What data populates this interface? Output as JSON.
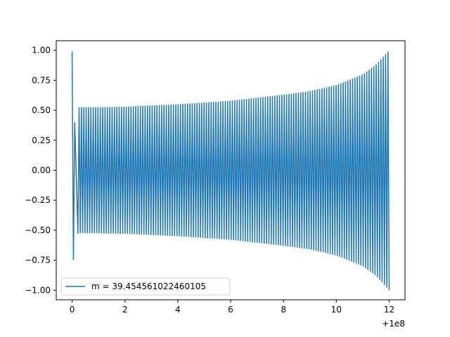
{
  "chart_data": {
    "type": "line",
    "title": "",
    "xlabel": "",
    "ylabel": "",
    "x_offset_label": "+1e8",
    "xlim": [
      -0.6,
      12.6
    ],
    "ylim": [
      -1.08,
      1.08
    ],
    "x_ticks": [
      0,
      2,
      4,
      6,
      8,
      10,
      12
    ],
    "x_tick_labels": [
      "0",
      "2",
      "4",
      "6",
      "8",
      "10",
      "12"
    ],
    "y_ticks": [
      1.0,
      0.75,
      0.5,
      0.25,
      0.0,
      -0.25,
      -0.5,
      -0.75,
      -1.0
    ],
    "y_tick_labels": [
      "1.00",
      "0.75",
      "0.50",
      "0.25",
      "0.00",
      "−0.25",
      "−0.50",
      "−0.75",
      "−1.00"
    ],
    "grid": false,
    "legend_position": "lower-left",
    "series": [
      {
        "name": "m = 39.454561022460105",
        "color": "#1f77b4",
        "x_range": [
          0,
          12
        ],
        "oscillation_count": 132,
        "initial_points": [
          [
            0.0,
            0.99
          ],
          [
            0.05,
            -0.75
          ],
          [
            0.1,
            0.4
          ],
          [
            0.22,
            -0.53
          ]
        ],
        "envelope": {
          "x": [
            0.5,
            2,
            4,
            6,
            8,
            9,
            10,
            11,
            11.5,
            12
          ],
          "amplitude": [
            0.525,
            0.53,
            0.55,
            0.58,
            0.63,
            0.66,
            0.71,
            0.8,
            0.88,
            1.0
          ]
        }
      }
    ]
  }
}
